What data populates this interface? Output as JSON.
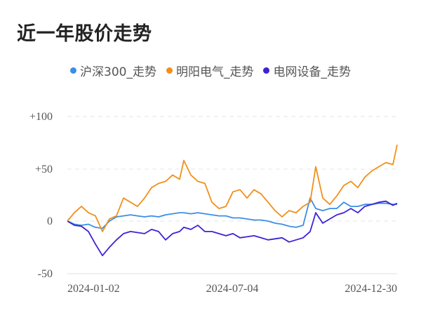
{
  "title": "近一年股价走势",
  "legend": [
    {
      "label": "沪深300_走势",
      "color": "#3a8ee6"
    },
    {
      "label": "明阳电气_走势",
      "color": "#f0901c"
    },
    {
      "label": "电网设备_走势",
      "color": "#3d22d6"
    }
  ],
  "chart_data": {
    "type": "line",
    "title": "近一年股价走势",
    "xlabel": "",
    "ylabel": "",
    "ylim": [
      -50,
      100
    ],
    "yticks": [
      "+100",
      "+50",
      "0",
      "-50"
    ],
    "ytick_values": [
      100,
      50,
      0,
      -50
    ],
    "xticks": [
      "2024-01-02",
      "2024-07-04",
      "2024-12-30"
    ],
    "grid": "horizontal dashed",
    "legend_position": "top",
    "x": [
      0,
      10,
      20,
      30,
      40,
      50,
      60,
      70,
      80,
      90,
      100,
      110,
      120,
      130,
      140,
      150,
      160,
      166,
      176,
      186,
      196,
      206,
      216,
      226,
      236,
      246,
      256,
      266,
      276,
      286,
      296,
      306,
      316,
      326,
      336,
      346,
      354,
      364,
      374,
      384,
      394,
      404,
      414,
      424,
      434,
      444,
      454,
      464,
      470
    ],
    "series": [
      {
        "name": "沪深300_走势",
        "color": "#3a8ee6",
        "values": [
          0,
          -3,
          -4,
          -3,
          -6,
          -7,
          0,
          4,
          5,
          6,
          5,
          4,
          5,
          4,
          6,
          7,
          8,
          8,
          7,
          8,
          7,
          6,
          5,
          5,
          3,
          3,
          2,
          1,
          1,
          0,
          -2,
          -3,
          -5,
          -6,
          -4,
          22,
          12,
          10,
          12,
          12,
          18,
          14,
          14,
          16,
          16,
          17,
          17,
          16,
          16
        ]
      },
      {
        "name": "明阳电气_走势",
        "color": "#f0901c",
        "values": [
          0,
          8,
          14,
          8,
          5,
          -10,
          2,
          5,
          22,
          18,
          14,
          22,
          32,
          36,
          38,
          44,
          40,
          58,
          44,
          38,
          36,
          18,
          12,
          14,
          28,
          30,
          22,
          30,
          26,
          18,
          10,
          4,
          10,
          8,
          14,
          18,
          52,
          22,
          16,
          24,
          34,
          38,
          32,
          42,
          48,
          52,
          56,
          54,
          73
        ]
      },
      {
        "name": "电网设备_走势",
        "color": "#3d22d6",
        "values": [
          0,
          -4,
          -5,
          -10,
          -22,
          -33,
          -25,
          -18,
          -12,
          -10,
          -11,
          -12,
          -8,
          -10,
          -18,
          -12,
          -10,
          -6,
          -8,
          -4,
          -10,
          -10,
          -12,
          -14,
          -12,
          -16,
          -15,
          -14,
          -16,
          -18,
          -17,
          -16,
          -20,
          -18,
          -16,
          -10,
          8,
          -2,
          2,
          6,
          8,
          12,
          8,
          14,
          16,
          18,
          19,
          15,
          17
        ]
      }
    ]
  }
}
